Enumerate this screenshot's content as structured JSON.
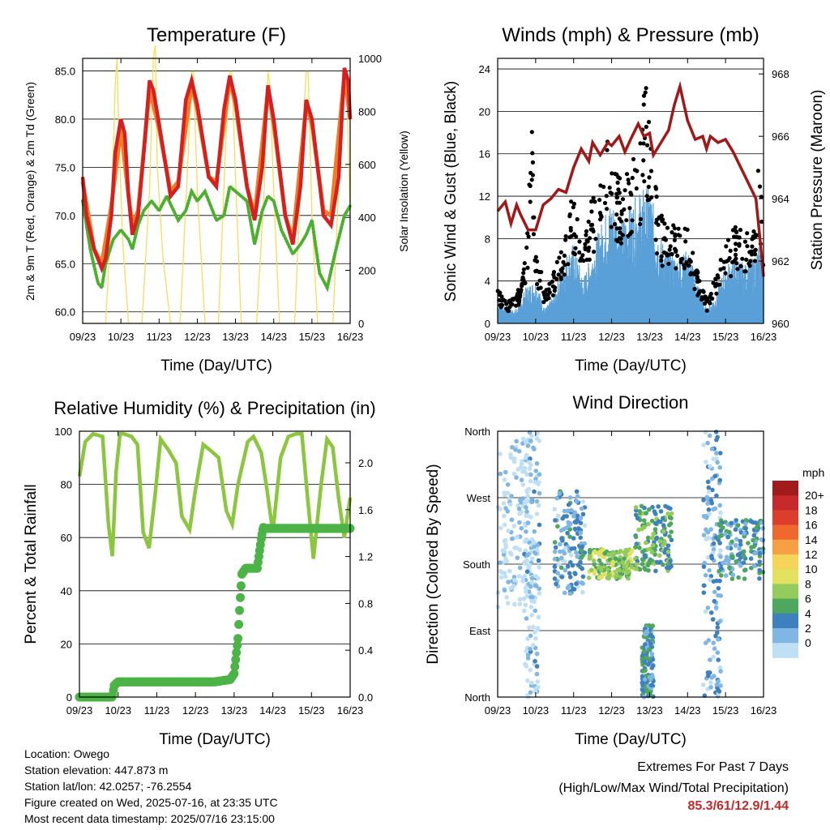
{
  "colors": {
    "temp_red": "#d42020",
    "temp_orange": "#f07d25",
    "dewpoint_green": "#4caf2e",
    "solar_yellow": "#f7dc5c",
    "gust_black": "#000000",
    "wind_blue": "#5aa0d8",
    "pressure_maroon": "#a01818",
    "rh_green": "#8cc63f",
    "precip_green": "#4cb347",
    "extremes_red": "#c62828"
  },
  "chart_data": [
    {
      "id": "temperature",
      "type": "line",
      "title": "Temperature (F)",
      "xlabel": "Time (Day/UTC)",
      "ylabel": "2m & 9m T (Red, Orange) & 2m Td (Green)",
      "ylabel_right": "Solar Insolation (Yellow)",
      "xticks": [
        "09/23",
        "10/23",
        "11/23",
        "12/23",
        "13/23",
        "14/23",
        "15/23",
        "16/23"
      ],
      "yticks": [
        "60.0",
        "65.0",
        "70.0",
        "75.0",
        "80.0",
        "85.0"
      ],
      "yticks_right": [
        "0",
        "200",
        "400",
        "600",
        "800",
        "1000"
      ],
      "xlim": [
        0,
        7
      ],
      "ylim": [
        58.8,
        86.3
      ],
      "ylim_right": [
        0,
        1000
      ],
      "grid": true,
      "series": [
        {
          "name": "2m T",
          "axis": "left",
          "x": [
            0.0,
            0.1,
            0.3,
            0.5,
            0.6,
            0.75,
            0.85,
            1.0,
            1.1,
            1.2,
            1.3,
            1.45,
            1.6,
            1.75,
            1.85,
            2.0,
            2.3,
            2.5,
            2.7,
            2.85,
            3.0,
            3.3,
            3.5,
            3.7,
            3.85,
            4.0,
            4.3,
            4.5,
            4.7,
            4.85,
            5.0,
            5.3,
            5.5,
            5.7,
            5.85,
            6.0,
            6.3,
            6.5,
            6.7,
            6.85,
            6.95,
            7.0
          ],
          "y": [
            74.0,
            70.0,
            66.5,
            64.5,
            65.5,
            70.0,
            76.5,
            80.0,
            78.5,
            72.0,
            68.0,
            70.0,
            76.5,
            84.0,
            83.0,
            79.5,
            72.0,
            73.0,
            82.0,
            84.0,
            81.5,
            74.0,
            73.0,
            81.0,
            84.5,
            82.0,
            73.0,
            69.5,
            75.0,
            83.5,
            80.0,
            70.0,
            67.0,
            73.0,
            82.0,
            80.0,
            70.0,
            69.0,
            74.0,
            85.3,
            84.0,
            80.0
          ]
        },
        {
          "name": "9m T",
          "axis": "left",
          "x": [
            0.0,
            0.3,
            0.5,
            0.75,
            1.0,
            1.2,
            1.3,
            1.45,
            1.75,
            2.0,
            2.3,
            2.5,
            2.85,
            3.0,
            3.3,
            3.5,
            3.85,
            4.0,
            4.3,
            4.5,
            4.85,
            5.0,
            5.3,
            5.5,
            5.85,
            6.0,
            6.3,
            6.5,
            6.85,
            7.0
          ],
          "y": [
            73.5,
            66.5,
            65.0,
            71.0,
            79.0,
            72.0,
            69.0,
            70.5,
            83.0,
            79.0,
            72.5,
            73.5,
            83.5,
            81.0,
            74.0,
            73.5,
            84.0,
            81.5,
            73.0,
            70.0,
            83.0,
            79.5,
            70.0,
            67.5,
            81.5,
            79.5,
            70.5,
            70.0,
            84.5,
            80.0
          ]
        },
        {
          "name": "2m Td",
          "axis": "left",
          "x": [
            0.0,
            0.2,
            0.4,
            0.5,
            0.6,
            0.8,
            1.0,
            1.2,
            1.3,
            1.45,
            1.6,
            1.8,
            2.0,
            2.2,
            2.5,
            2.7,
            2.85,
            3.0,
            3.2,
            3.5,
            3.7,
            3.85,
            4.0,
            4.3,
            4.5,
            4.7,
            4.85,
            5.0,
            5.2,
            5.5,
            5.7,
            5.85,
            6.0,
            6.2,
            6.4,
            6.6,
            6.85,
            7.0
          ],
          "y": [
            71.5,
            66.5,
            63.0,
            62.5,
            65.0,
            67.5,
            68.5,
            67.5,
            66.5,
            69.0,
            70.5,
            71.5,
            70.5,
            72.0,
            69.5,
            70.5,
            72.5,
            71.5,
            72.5,
            69.5,
            70.0,
            73.0,
            72.5,
            71.5,
            67.0,
            70.5,
            72.0,
            71.5,
            68.5,
            66.0,
            67.0,
            68.0,
            69.5,
            64.0,
            62.5,
            66.0,
            70.0,
            71.0
          ]
        },
        {
          "name": "Solar Insolation",
          "axis": "right",
          "x": [
            0.0,
            0.4,
            0.6,
            0.75,
            0.85,
            0.9,
            0.95,
            1.05,
            1.2,
            1.35,
            1.55,
            1.75,
            1.85,
            1.9,
            1.95,
            2.1,
            2.3,
            2.55,
            2.75,
            2.85,
            2.9,
            3.0,
            3.2,
            3.35,
            3.55,
            3.75,
            3.85,
            3.9,
            4.0,
            4.15,
            4.35,
            4.55,
            4.75,
            4.85,
            4.9,
            5.0,
            5.15,
            5.35,
            5.55,
            5.75,
            5.85,
            5.9,
            6.0,
            6.15,
            6.35,
            6.55,
            6.75,
            6.85,
            6.9,
            7.0
          ],
          "y": [
            0,
            0,
            0,
            400,
            900,
            1000,
            700,
            300,
            0,
            0,
            0,
            500,
            1000,
            1050,
            600,
            250,
            0,
            0,
            600,
            950,
            950,
            500,
            0,
            0,
            0,
            700,
            950,
            950,
            550,
            0,
            0,
            0,
            500,
            950,
            900,
            500,
            0,
            0,
            0,
            700,
            950,
            950,
            400,
            0,
            0,
            0,
            700,
            950,
            950,
            400
          ]
        }
      ]
    },
    {
      "id": "winds",
      "type": "scatter",
      "title": "Winds (mph) & Pressure (mb)",
      "xlabel": "Time (Day/UTC)",
      "ylabel": "Sonic Wind & Gust (Blue, Black)",
      "ylabel_right": "Station Pressure (Maroon)",
      "xticks": [
        "09/23",
        "10/23",
        "11/23",
        "12/23",
        "13/23",
        "14/23",
        "15/23",
        "16/23"
      ],
      "yticks": [
        "0",
        "4",
        "8",
        "12",
        "16",
        "20",
        "24"
      ],
      "yticks_right": [
        "960",
        "962",
        "964",
        "966",
        "968"
      ],
      "xlim": [
        0,
        7
      ],
      "ylim": [
        0,
        25
      ],
      "ylim_right": [
        960,
        968.5
      ],
      "grid": true,
      "series": [
        {
          "name": "Sonic Wind",
          "axis": "left",
          "x": [
            0.0,
            0.25,
            0.5,
            0.75,
            1.0,
            1.25,
            1.5,
            1.75,
            2.0,
            2.25,
            2.5,
            2.75,
            3.0,
            3.25,
            3.5,
            3.75,
            4.0,
            4.25,
            4.5,
            4.75,
            5.0,
            5.25,
            5.5,
            5.75,
            6.0,
            6.25,
            6.5,
            6.75,
            7.0
          ],
          "y": [
            1.5,
            1.0,
            1.0,
            2.5,
            3.0,
            1.0,
            2.0,
            4.5,
            5.5,
            3.0,
            5.0,
            7.0,
            8.5,
            7.0,
            8.0,
            9.0,
            9.5,
            6.0,
            5.0,
            4.5,
            5.0,
            3.0,
            1.0,
            2.0,
            4.0,
            4.5,
            4.0,
            4.5,
            6.0
          ]
        },
        {
          "name": "Gust",
          "axis": "left",
          "x": [
            0.0,
            0.25,
            0.5,
            0.75,
            0.9,
            1.0,
            1.25,
            1.5,
            1.75,
            1.95,
            2.0,
            2.25,
            2.5,
            2.75,
            2.85,
            3.0,
            3.25,
            3.5,
            3.75,
            3.9,
            4.0,
            4.25,
            4.5,
            4.75,
            5.0,
            5.25,
            5.5,
            5.75,
            6.0,
            6.25,
            6.5,
            6.75,
            6.85,
            7.0
          ],
          "y": [
            3.0,
            2.0,
            2.5,
            6.0,
            18.0,
            7.0,
            3.0,
            5.0,
            8.0,
            12.0,
            11.0,
            7.0,
            12.0,
            13.0,
            20.0,
            15.5,
            13.0,
            14.5,
            16.5,
            23.0,
            17.0,
            10.0,
            9.0,
            9.5,
            8.5,
            5.0,
            2.0,
            4.5,
            7.0,
            9.0,
            8.0,
            9.0,
            15.0,
            9.0
          ]
        },
        {
          "name": "Station Pressure",
          "axis": "right",
          "x": [
            0.0,
            0.2,
            0.35,
            0.5,
            0.6,
            0.8,
            1.0,
            1.2,
            1.4,
            1.6,
            1.8,
            2.0,
            2.2,
            2.4,
            2.5,
            2.7,
            2.9,
            3.0,
            3.2,
            3.35,
            3.5,
            3.7,
            3.85,
            4.0,
            4.1,
            4.3,
            4.5,
            4.65,
            4.8,
            5.0,
            5.2,
            5.4,
            5.5,
            5.6,
            5.8,
            6.0,
            6.2,
            6.4,
            6.6,
            6.8,
            6.9,
            7.0
          ],
          "y": [
            963.6,
            963.9,
            963.2,
            963.8,
            963.5,
            963.0,
            963.0,
            963.8,
            964.0,
            964.3,
            964.2,
            965.0,
            965.6,
            965.2,
            965.8,
            965.4,
            965.8,
            965.7,
            966.0,
            965.5,
            965.9,
            966.4,
            966.0,
            966.1,
            965.4,
            965.8,
            966.2,
            967.0,
            967.6,
            966.5,
            965.9,
            966.0,
            965.6,
            966.0,
            965.8,
            965.9,
            965.5,
            965.0,
            964.5,
            964.0,
            962.8,
            961.5
          ]
        }
      ]
    },
    {
      "id": "humidity",
      "type": "line",
      "title": "Relative Humidity (%) & Precipitation (in)",
      "xlabel": "Time (Day/UTC)",
      "ylabel": "Percent & Total Rainfall",
      "xticks": [
        "09/23",
        "10/23",
        "11/23",
        "12/23",
        "13/23",
        "14/23",
        "15/23",
        "16/23"
      ],
      "yticks": [
        "0",
        "20",
        "40",
        "60",
        "80",
        "100"
      ],
      "yticks_right": [
        "0.0",
        "0.4",
        "0.8",
        "1.2",
        "1.6",
        "2.0"
      ],
      "xlim": [
        0,
        7
      ],
      "ylim": [
        0,
        100
      ],
      "ylim_right": [
        0,
        2.27
      ],
      "grid": true,
      "series": [
        {
          "name": "Relative Humidity",
          "axis": "left",
          "x": [
            0.0,
            0.15,
            0.35,
            0.6,
            0.75,
            0.85,
            0.95,
            1.05,
            1.15,
            1.35,
            1.5,
            1.65,
            1.8,
            1.95,
            2.1,
            2.3,
            2.5,
            2.65,
            2.85,
            3.0,
            3.2,
            3.45,
            3.6,
            3.8,
            3.95,
            4.1,
            4.35,
            4.5,
            4.7,
            4.85,
            5.0,
            5.2,
            5.4,
            5.6,
            5.75,
            5.9,
            6.05,
            6.25,
            6.4,
            6.55,
            6.7,
            6.85,
            7.0
          ],
          "y": [
            83.0,
            96.0,
            99.0,
            98.0,
            65.0,
            53.0,
            85.0,
            99.0,
            99.0,
            98.0,
            95.0,
            62.0,
            56.0,
            75.0,
            97.0,
            93.0,
            88.0,
            68.0,
            63.0,
            78.0,
            95.0,
            92.0,
            90.0,
            70.0,
            65.0,
            80.0,
            96.0,
            98.0,
            92.0,
            78.0,
            62.0,
            90.0,
            98.0,
            99.0,
            99.0,
            75.0,
            52.0,
            80.0,
            97.0,
            94.0,
            75.0,
            60.0,
            75.0
          ]
        },
        {
          "name": "Total Rainfall",
          "axis": "right",
          "x": [
            0.0,
            0.85,
            0.9,
            1.0,
            1.5,
            2.0,
            2.5,
            3.0,
            3.5,
            3.9,
            4.0,
            4.05,
            4.1,
            4.15,
            4.2,
            4.3,
            4.6,
            4.7,
            4.75,
            4.8,
            5.0,
            5.5,
            6.0,
            6.5,
            7.0
          ],
          "y": [
            0.0,
            0.0,
            0.1,
            0.13,
            0.13,
            0.13,
            0.13,
            0.13,
            0.13,
            0.15,
            0.2,
            0.35,
            0.5,
            0.8,
            1.05,
            1.1,
            1.1,
            1.35,
            1.45,
            1.44,
            1.44,
            1.44,
            1.44,
            1.44,
            1.44
          ]
        }
      ]
    },
    {
      "id": "direction",
      "type": "scatter",
      "title": "Wind Direction",
      "xlabel": "Time (Day/UTC)",
      "ylabel": "Direction (Colored By Speed)",
      "xticks": [
        "09/23",
        "10/23",
        "11/23",
        "12/23",
        "13/23",
        "14/23",
        "15/23",
        "16/23"
      ],
      "yticks": [
        "North",
        "East",
        "South",
        "West",
        "North"
      ],
      "xlim": [
        0,
        7
      ],
      "ylim": [
        0,
        360
      ],
      "grid": true,
      "legend": {
        "title": "mph",
        "labels": [
          "20+",
          "18",
          "16",
          "14",
          "12",
          "10",
          "8",
          "6",
          "4",
          "2",
          "0"
        ],
        "colors": [
          "#a11b1b",
          "#c62a2a",
          "#dc3e2b",
          "#f0682e",
          "#f6a043",
          "#f6d45a",
          "#e3e160",
          "#93cc5c",
          "#4ea75e",
          "#3f81bf",
          "#7fb6e4",
          "#bfdff4"
        ],
        "position": "right"
      },
      "clusters": [
        {
          "x": [
            0.0,
            0.9
          ],
          "y": [
            120,
            350
          ],
          "speed": 1
        },
        {
          "x": [
            0.7,
            1.1
          ],
          "y": [
            0,
            360
          ],
          "speed": 2
        },
        {
          "x": [
            1.5,
            2.3
          ],
          "y": [
            140,
            280
          ],
          "speed": 4
        },
        {
          "x": [
            2.4,
            3.6
          ],
          "y": [
            160,
            200
          ],
          "speed": 9
        },
        {
          "x": [
            3.8,
            4.1
          ],
          "y": [
            0,
            100
          ],
          "speed": 5
        },
        {
          "x": [
            3.6,
            4.6
          ],
          "y": [
            170,
            260
          ],
          "speed": 7
        },
        {
          "x": [
            5.4,
            5.9
          ],
          "y": [
            0,
            360
          ],
          "speed": 3
        },
        {
          "x": [
            5.8,
            7.0
          ],
          "y": [
            160,
            240
          ],
          "speed": 5
        }
      ]
    }
  ],
  "info": {
    "location": "Location: Owego",
    "elevation": "Station elevation: 447.873 m",
    "latlon": "Station lat/lon: 42.0257; -76.2554",
    "created": "Figure created on Wed, 2025-07-16, at 23:35 UTC",
    "timestamp": "Most recent data timestamp: 2025/07/16 23:15:00"
  },
  "extremes": {
    "title_line1": "Extremes For Past 7 Days",
    "title_line2": "(High/Low/Max Wind/Total Precipitation)",
    "values": "85.3/61/12.9/1.44"
  }
}
